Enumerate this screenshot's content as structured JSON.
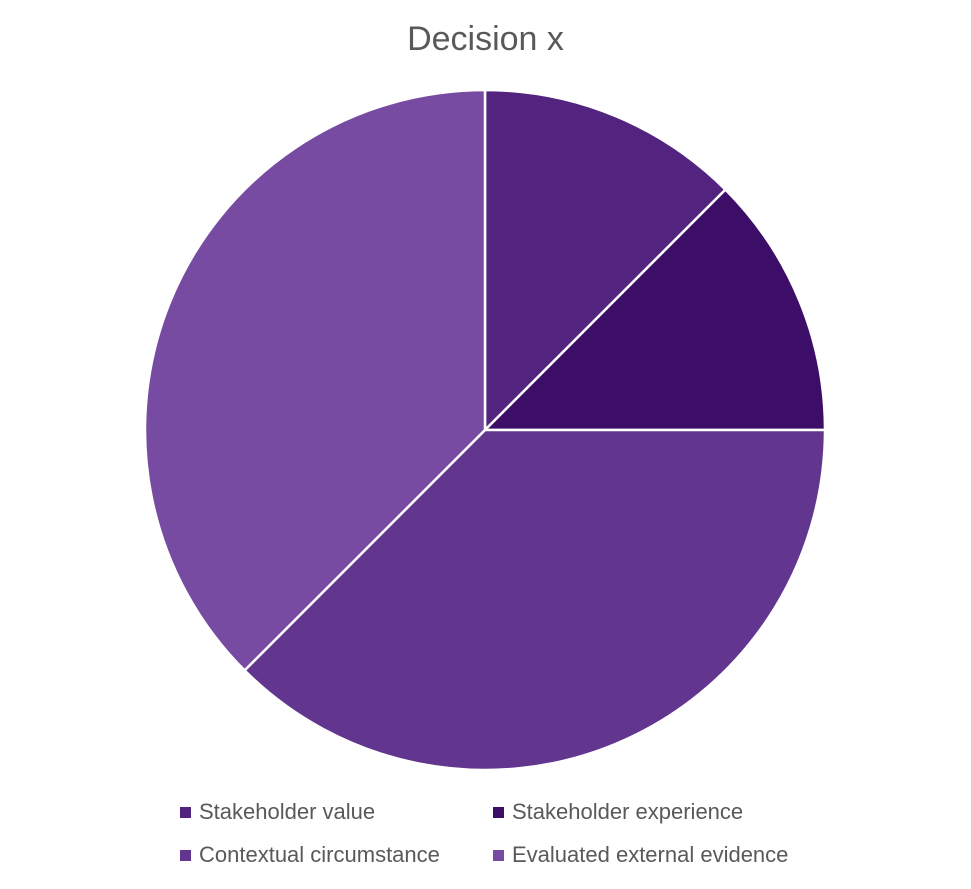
{
  "chart_data": {
    "type": "pie",
    "title": "Decision x",
    "categories": [
      "Stakeholder value",
      "Stakeholder experience",
      "Contextual circumstance",
      "Evaluated external evidence"
    ],
    "values": [
      12.5,
      12.5,
      37.5,
      37.5
    ],
    "colors": [
      "#522480",
      "#3c0e68",
      "#62358e",
      "#784ba3"
    ],
    "legend_position": "bottom"
  }
}
